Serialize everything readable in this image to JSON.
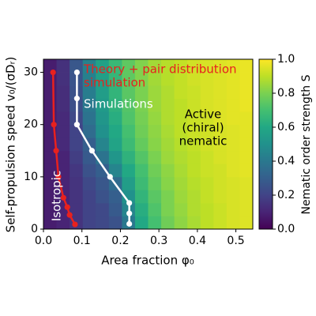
{
  "chart_data": {
    "type": "heatmap",
    "xlabel": "Area fraction φ₀",
    "ylabel": "Self-propulsion speed v₀/(σDᵣ)",
    "colorbar_label": "Nematic order strength S",
    "colormap": "viridis",
    "xlim": [
      0,
      0.544
    ],
    "ylim": [
      0,
      32.5
    ],
    "zlim": [
      0,
      1
    ],
    "xticks": [
      {
        "value": 0,
        "label": "0.0"
      },
      0.1,
      0.2,
      0.3,
      0.4,
      0.5
    ],
    "yticks": [
      0,
      10,
      20,
      30
    ],
    "zticks": [
      {
        "value": 0,
        "label": "0.0"
      },
      0.2,
      0.4,
      0.6,
      0.8,
      {
        "value": 1,
        "label": "1.0"
      }
    ],
    "x_edges": [
      0,
      0.034,
      0.068,
      0.102,
      0.136,
      0.17,
      0.204,
      0.238,
      0.272,
      0.306,
      0.34,
      0.374,
      0.408,
      0.442,
      0.476,
      0.51,
      0.544
    ],
    "y_edges": [
      0,
      2.5,
      5,
      7.5,
      10,
      12.5,
      15,
      17.5,
      20,
      22.5,
      25,
      27.5,
      30,
      32.5
    ],
    "z": [
      [
        0.08,
        0.1,
        0.15,
        0.2,
        0.22,
        0.25,
        0.4,
        0.6,
        0.7,
        0.78,
        0.83,
        0.87,
        0.9,
        0.92,
        0.94,
        0.95
      ],
      [
        0.08,
        0.1,
        0.15,
        0.2,
        0.22,
        0.28,
        0.45,
        0.62,
        0.72,
        0.8,
        0.84,
        0.88,
        0.9,
        0.92,
        0.94,
        0.95
      ],
      [
        0.08,
        0.1,
        0.15,
        0.2,
        0.25,
        0.3,
        0.5,
        0.65,
        0.74,
        0.8,
        0.85,
        0.88,
        0.91,
        0.93,
        0.94,
        0.95
      ],
      [
        0.08,
        0.1,
        0.15,
        0.22,
        0.27,
        0.35,
        0.55,
        0.68,
        0.76,
        0.82,
        0.86,
        0.89,
        0.91,
        0.93,
        0.94,
        0.95
      ],
      [
        0.08,
        0.1,
        0.16,
        0.25,
        0.3,
        0.45,
        0.6,
        0.7,
        0.78,
        0.83,
        0.87,
        0.9,
        0.92,
        0.93,
        0.95,
        0.96
      ],
      [
        0.08,
        0.1,
        0.18,
        0.28,
        0.38,
        0.52,
        0.64,
        0.73,
        0.8,
        0.85,
        0.88,
        0.9,
        0.92,
        0.94,
        0.95,
        0.96
      ],
      [
        0.08,
        0.12,
        0.2,
        0.3,
        0.45,
        0.58,
        0.68,
        0.76,
        0.82,
        0.86,
        0.89,
        0.91,
        0.93,
        0.94,
        0.95,
        0.96
      ],
      [
        0.08,
        0.12,
        0.2,
        0.35,
        0.5,
        0.6,
        0.7,
        0.78,
        0.83,
        0.87,
        0.9,
        0.92,
        0.93,
        0.94,
        0.95,
        0.96
      ],
      [
        0.08,
        0.12,
        0.22,
        0.38,
        0.52,
        0.62,
        0.72,
        0.79,
        0.84,
        0.88,
        0.9,
        0.92,
        0.93,
        0.95,
        0.96,
        0.96
      ],
      [
        0.08,
        0.13,
        0.24,
        0.4,
        0.54,
        0.64,
        0.73,
        0.8,
        0.85,
        0.88,
        0.9,
        0.92,
        0.94,
        0.95,
        0.96,
        0.97
      ],
      [
        0.08,
        0.13,
        0.25,
        0.42,
        0.55,
        0.65,
        0.74,
        0.8,
        0.85,
        0.88,
        0.91,
        0.92,
        0.94,
        0.95,
        0.96,
        0.97
      ],
      [
        0.08,
        0.14,
        0.26,
        0.43,
        0.56,
        0.66,
        0.75,
        0.81,
        0.86,
        0.89,
        0.91,
        0.93,
        0.94,
        0.95,
        0.96,
        0.97
      ],
      [
        0.08,
        0.14,
        0.27,
        0.44,
        0.57,
        0.67,
        0.75,
        0.81,
        0.86,
        0.89,
        0.91,
        0.93,
        0.94,
        0.95,
        0.96,
        0.97
      ]
    ],
    "series": [
      {
        "color": "#e8211e",
        "x": [
          0.025,
          0.027,
          0.033,
          0.039,
          0.052,
          0.062,
          0.068,
          0.082
        ],
        "values": [
          30,
          20,
          15,
          10,
          6,
          4.2,
          2.7,
          0.9
        ]
      },
      {
        "color": "#ffffff",
        "x": [
          0.087,
          0.087,
          0.087,
          0.126,
          0.173,
          0.223,
          0.223,
          0.223
        ],
        "values": [
          30,
          25,
          20,
          15,
          10,
          5,
          3,
          1
        ]
      }
    ],
    "annotations": [
      {
        "lines": [
          "Theory + pair distribution",
          "simulation"
        ],
        "color": "#e8211e"
      },
      {
        "lines": [
          "Simulations"
        ],
        "color": "#ffffff"
      },
      {
        "lines": [
          "Active",
          "(chiral)",
          "nematic"
        ],
        "color": "#000000"
      },
      {
        "lines": [
          "Isotropic"
        ],
        "color": "#ffffff"
      }
    ]
  }
}
